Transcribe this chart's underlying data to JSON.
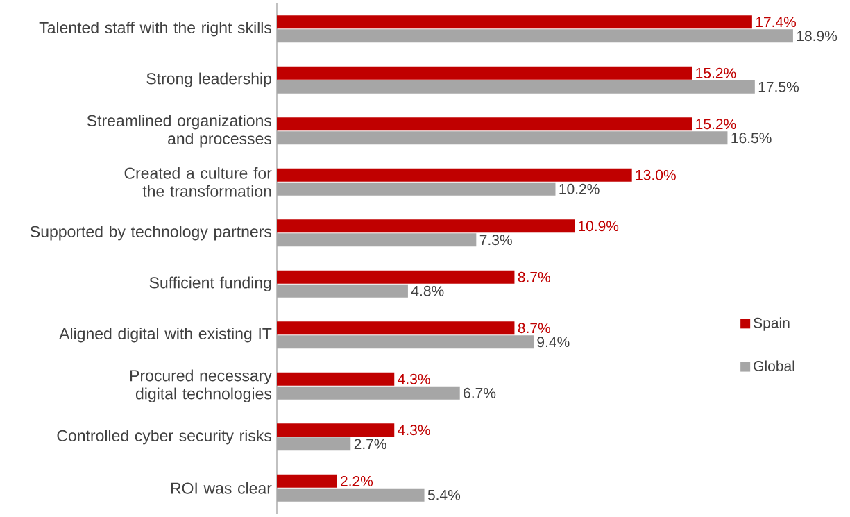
{
  "chart_data": {
    "type": "bar",
    "orientation": "horizontal",
    "legend": "right",
    "categories": [
      "Talented staff with the right skills",
      "Strong leadership",
      "Streamlined organizations and processes",
      "Created a culture for the transformation",
      "Supported by technology partners",
      "Sufficient funding",
      "Aligned digital with existing IT",
      "Procured necessary digital technologies",
      "Controlled cyber security risks",
      "ROI was clear"
    ],
    "series": [
      {
        "name": "Spain",
        "color": "#c00000",
        "values": [
          17.4,
          15.2,
          15.2,
          13.0,
          10.9,
          8.7,
          8.7,
          4.3,
          4.3,
          2.2
        ],
        "value_labels": [
          "17.4%",
          "15.2%",
          "15.2%",
          "13.0%",
          "10.9%",
          "8.7%",
          "8.7%",
          "4.3%",
          "4.3%",
          "2.2%"
        ]
      },
      {
        "name": "Global",
        "color": "#a6a6a6",
        "values": [
          18.9,
          17.5,
          16.5,
          10.2,
          7.3,
          4.8,
          9.4,
          6.7,
          2.7,
          5.4
        ],
        "value_labels": [
          "18.9%",
          "17.5%",
          "16.5%",
          "10.2%",
          "7.3%",
          "4.8%",
          "9.4%",
          "6.7%",
          "2.7%",
          "5.4%"
        ]
      }
    ]
  }
}
